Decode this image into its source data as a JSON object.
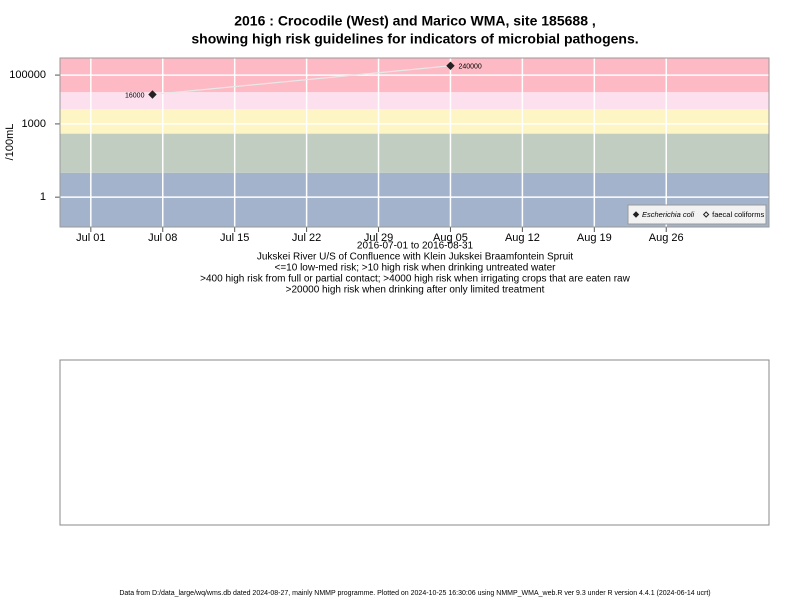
{
  "chart_data": {
    "type": "scatter",
    "title": "2016 : Crocodile (West) and Marico WMA, site 185688 ,",
    "subtitle": "showing high risk guidelines for indicators of microbial pathogens.",
    "y_label": "/100mL",
    "x_label_lines": [
      "2016-07-01 to 2016-08-31",
      "Jukskei River U/S of Confluence with Klein Jukskei Braamfontein Spruit",
      "<=10 low-med risk; >10 high risk when drinking untreated water",
      ">400 high risk from full or partial contact; >4000 high risk when irrigating crops that are eaten raw",
      ">20000 high risk when drinking after only limited treatment"
    ],
    "footer": "Data from D:/data_large/wq/wms.db dated 2024-08-27, mainly NMMP programme. Plotted on 2024-10-25 16:30:06 using NMMP_WMA_web.R ver 9.3 under R version 4.4.1 (2024-06-14 ucrt)",
    "x": [
      "Jul 07",
      "Aug 05"
    ],
    "series": [
      {
        "name": "Escherichia coli",
        "color": "#222222",
        "values": [
          16000,
          240000
        ],
        "marker": "filled-diamond"
      },
      {
        "name": "faecal coliforms",
        "color": "#222222",
        "values": [
          null,
          null
        ],
        "marker": "open-diamond"
      }
    ],
    "xlim": [
      "Jun 28",
      "Sep 05"
    ],
    "xticks": [
      "Jul 01",
      "Jul 08",
      "Jul 15",
      "Jul 22",
      "Jul 29",
      "Aug 05",
      "Aug 12",
      "Aug 19",
      "Aug 26"
    ],
    "ylim": [
      0.06,
      500000
    ],
    "yticks": [
      1,
      1000,
      100000
    ],
    "log_y": true,
    "grid": true,
    "risk_thresholds": [
      10,
      400,
      4000,
      20000
    ],
    "band_colors": [
      "#a3b3cb",
      "#c0cdc0",
      "#fdf5c4",
      "#fde0ee",
      "#fdb9c4"
    ],
    "legend": "bottom-right"
  }
}
